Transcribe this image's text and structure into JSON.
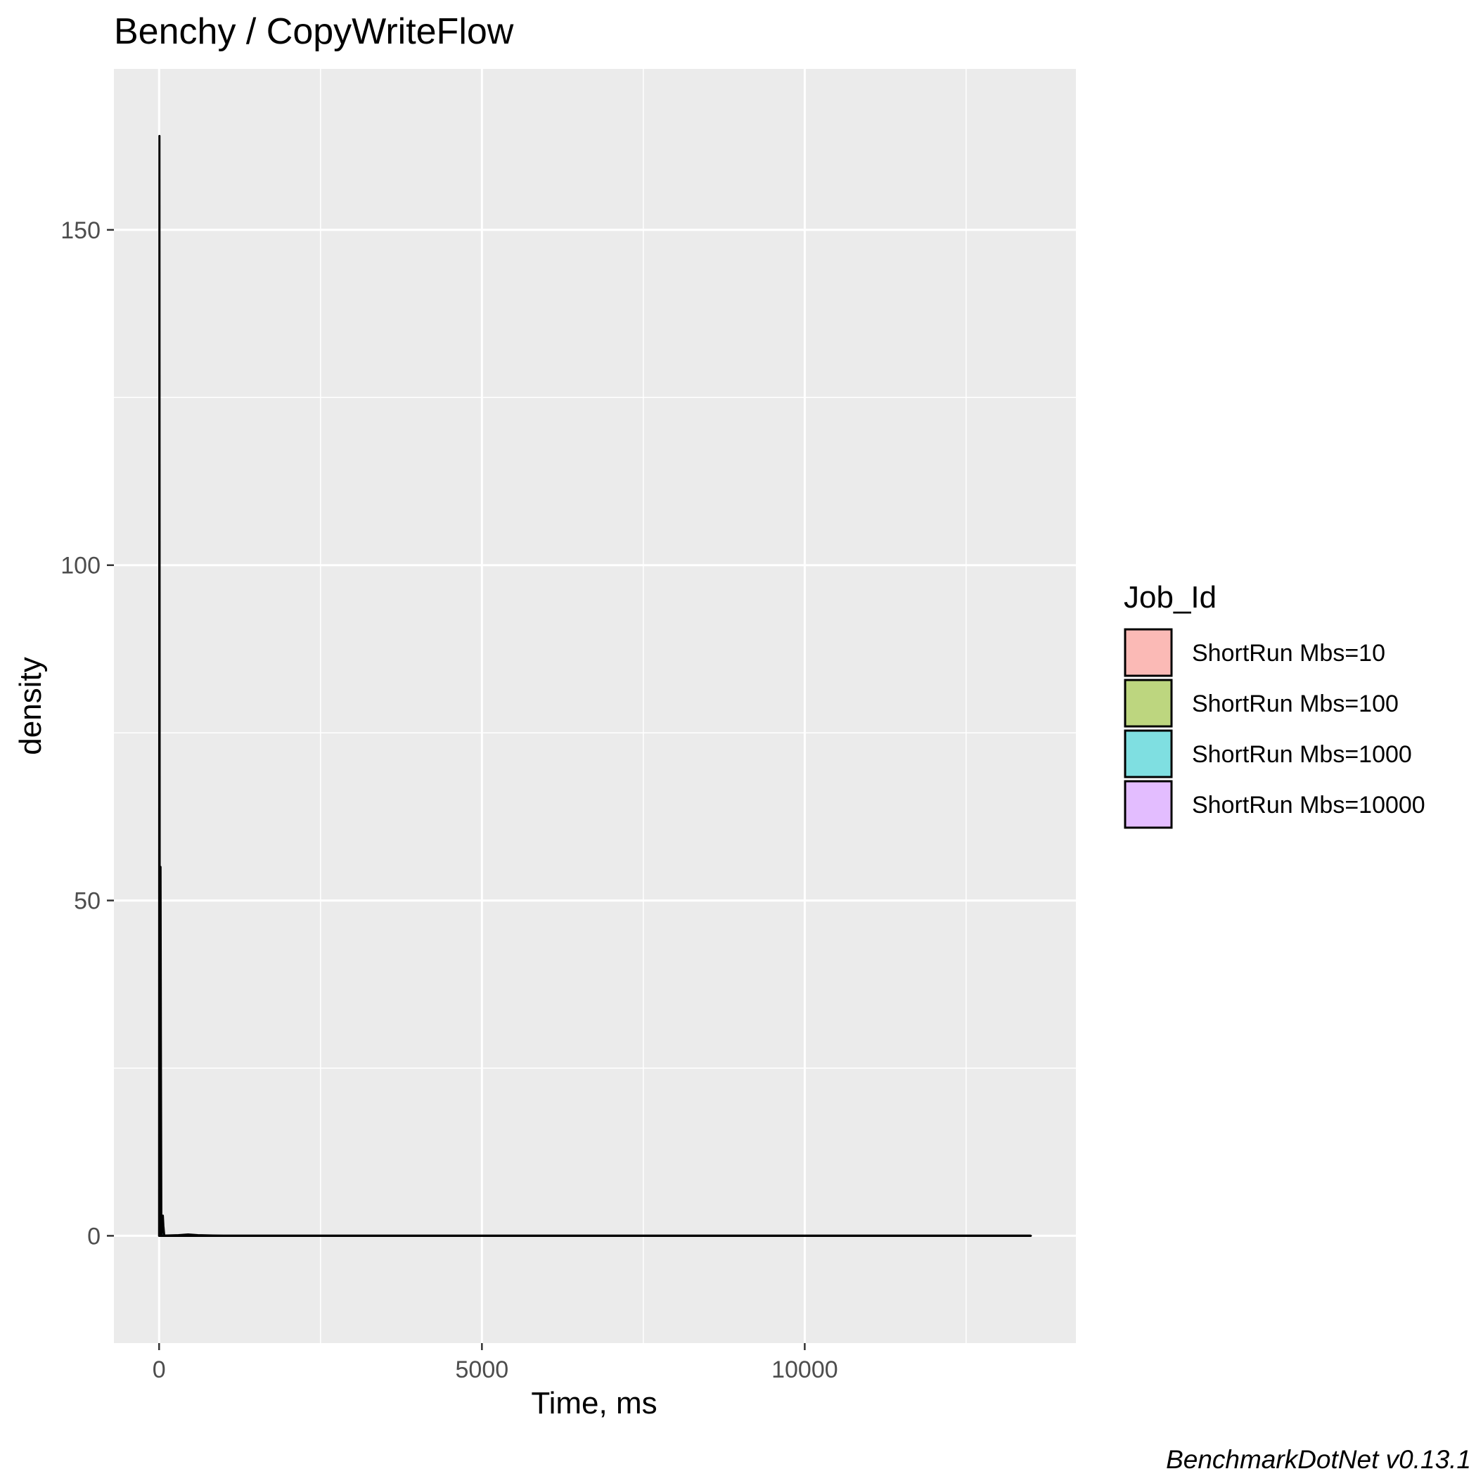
{
  "chart_data": {
    "type": "area",
    "title": "Benchy / CopyWriteFlow",
    "xlabel": "Time, ms",
    "ylabel": "density",
    "xlim": [
      -700,
      14200
    ],
    "ylim": [
      -16,
      174
    ],
    "x_ticks": [
      0,
      5000,
      10000
    ],
    "x_tick_labels": [
      "0",
      "5000",
      "10000"
    ],
    "x_minor_ticks": [
      2500,
      7500,
      12500
    ],
    "y_ticks": [
      0,
      50,
      100,
      150
    ],
    "y_tick_labels": [
      "0",
      "50",
      "100",
      "150"
    ],
    "y_minor_ticks": [
      25,
      75,
      125
    ],
    "grid": true,
    "legend": {
      "title": "Job_Id",
      "placement": "right"
    },
    "series": [
      {
        "name": "ShortRun Mbs=10",
        "color": "#F8766D",
        "points": [
          [
            0,
            0
          ],
          [
            3,
            110
          ],
          [
            5,
            164
          ],
          [
            7,
            110
          ],
          [
            10,
            0
          ],
          [
            13500,
            0
          ]
        ]
      },
      {
        "name": "ShortRun Mbs=100",
        "color": "#7CAE00",
        "points": [
          [
            10,
            0
          ],
          [
            18,
            30
          ],
          [
            22,
            55
          ],
          [
            27,
            30
          ],
          [
            35,
            0
          ],
          [
            13500,
            0
          ]
        ]
      },
      {
        "name": "ShortRun Mbs=1000",
        "color": "#00BFC4",
        "points": [
          [
            40,
            0
          ],
          [
            50,
            1.5
          ],
          [
            58,
            3
          ],
          [
            66,
            1.5
          ],
          [
            80,
            0
          ],
          [
            13500,
            0
          ]
        ]
      },
      {
        "name": "ShortRun Mbs=10000",
        "color": "#C77CFF",
        "points": [
          [
            0,
            0
          ],
          [
            300,
            0.1
          ],
          [
            450,
            0.2
          ],
          [
            600,
            0.1
          ],
          [
            1000,
            0
          ],
          [
            13500,
            0
          ]
        ]
      }
    ]
  },
  "caption": "BenchmarkDotNet v0.13.1"
}
